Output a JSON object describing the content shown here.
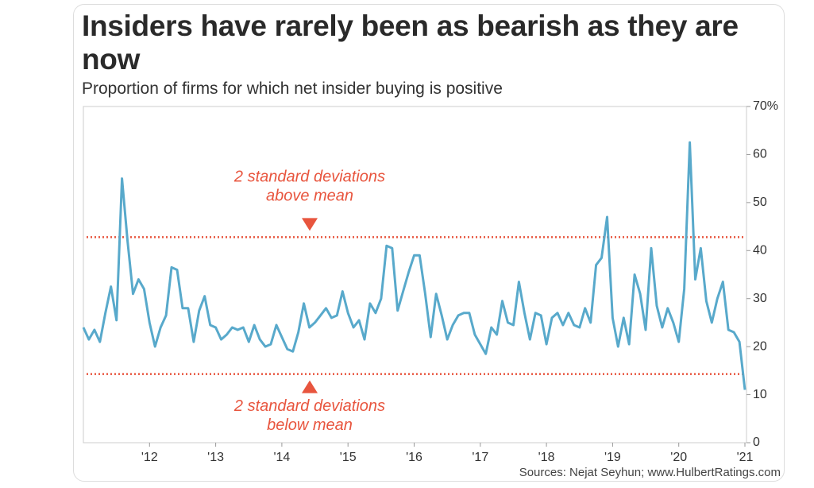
{
  "chart_data": {
    "type": "line",
    "title": "Insiders have rarely been as bearish as they are now",
    "subtitle": "Proportion of firms for which net insider buying is positive",
    "source": "Sources: Nejat Seyhun; www.HulbertRatings.com",
    "xlim": [
      2011,
      2021
    ],
    "xticks": [
      {
        "value": 2012,
        "label": "'12"
      },
      {
        "value": 2013,
        "label": "'13"
      },
      {
        "value": 2014,
        "label": "'14"
      },
      {
        "value": 2015,
        "label": "'15"
      },
      {
        "value": 2016,
        "label": "'16"
      },
      {
        "value": 2017,
        "label": "'17"
      },
      {
        "value": 2018,
        "label": "'18"
      },
      {
        "value": 2019,
        "label": "'19"
      },
      {
        "value": 2020,
        "label": "'20"
      },
      {
        "value": 2021,
        "label": "'21"
      }
    ],
    "ylim": [
      0,
      70
    ],
    "yticks": [
      0,
      10,
      20,
      30,
      40,
      50,
      60,
      {
        "value": 70,
        "label": "70%"
      }
    ],
    "x": [
      2011,
      2011.083,
      2011.167,
      2011.25,
      2011.333,
      2011.417,
      2011.5,
      2011.583,
      2011.667,
      2011.75,
      2011.833,
      2011.917,
      2012,
      2012.083,
      2012.167,
      2012.25,
      2012.333,
      2012.417,
      2012.5,
      2012.583,
      2012.667,
      2012.75,
      2012.833,
      2012.917,
      2013,
      2013.083,
      2013.167,
      2013.25,
      2013.333,
      2013.417,
      2013.5,
      2013.583,
      2013.667,
      2013.75,
      2013.833,
      2013.917,
      2014,
      2014.083,
      2014.167,
      2014.25,
      2014.333,
      2014.417,
      2014.5,
      2014.583,
      2014.667,
      2014.75,
      2014.833,
      2014.917,
      2015,
      2015.083,
      2015.167,
      2015.25,
      2015.333,
      2015.417,
      2015.5,
      2015.583,
      2015.667,
      2015.75,
      2015.833,
      2015.917,
      2016,
      2016.083,
      2016.167,
      2016.25,
      2016.333,
      2016.417,
      2016.5,
      2016.583,
      2016.667,
      2016.75,
      2016.833,
      2016.917,
      2017,
      2017.083,
      2017.167,
      2017.25,
      2017.333,
      2017.417,
      2017.5,
      2017.583,
      2017.667,
      2017.75,
      2017.833,
      2017.917,
      2018,
      2018.083,
      2018.167,
      2018.25,
      2018.333,
      2018.417,
      2018.5,
      2018.583,
      2018.667,
      2018.75,
      2018.833,
      2018.917,
      2019,
      2019.083,
      2019.167,
      2019.25,
      2019.333,
      2019.417,
      2019.5,
      2019.583,
      2019.667,
      2019.75,
      2019.833,
      2019.917,
      2020,
      2020.083,
      2020.167,
      2020.25,
      2020.333,
      2020.417,
      2020.5,
      2020.583,
      2020.667,
      2020.75,
      2020.833,
      2020.917,
      2021
    ],
    "series": [
      {
        "color": "#58a9cb",
        "values": [
          24,
          21.5,
          23.5,
          21,
          27,
          32.5,
          25.5,
          55,
          42,
          31,
          34,
          32,
          25,
          20,
          24,
          26.5,
          36.5,
          36,
          28,
          28,
          21,
          27.5,
          30.5,
          24.5,
          24,
          21.5,
          22.5,
          24,
          23.5,
          24,
          21,
          24.5,
          21.5,
          20,
          20.5,
          24.5,
          22,
          19.5,
          19,
          23,
          29,
          24,
          25,
          26.5,
          28,
          26,
          26.5,
          31.5,
          27,
          24,
          25.5,
          21.5,
          29,
          27,
          30,
          41,
          40.5,
          27.5,
          31.5,
          35.5,
          39,
          39,
          31,
          22,
          31,
          26.5,
          21.5,
          24.5,
          26.5,
          27,
          27,
          22.5,
          20.5,
          18.5,
          24,
          22.5,
          29.5,
          25,
          24.5,
          33.5,
          27,
          21.5,
          27,
          26.5,
          20.5,
          26,
          27,
          24.5,
          27,
          24.5,
          24,
          28,
          25,
          37,
          38.5,
          47,
          26,
          20,
          26,
          20.5,
          35,
          31,
          23.5,
          40.5,
          28.5,
          24,
          28,
          25,
          21,
          32,
          62.5,
          34,
          40.5,
          29.5,
          25,
          30,
          33.5,
          23.5,
          23,
          21,
          11
        ]
      }
    ],
    "reference_lines": [
      {
        "value": 42.8,
        "color": "#e8553e",
        "label_lines": [
          "2 standard deviations",
          "above mean"
        ],
        "side": "above"
      },
      {
        "value": 14.3,
        "color": "#e8553e",
        "label_lines": [
          "2 standard deviations",
          "below mean"
        ],
        "side": "below"
      }
    ]
  }
}
